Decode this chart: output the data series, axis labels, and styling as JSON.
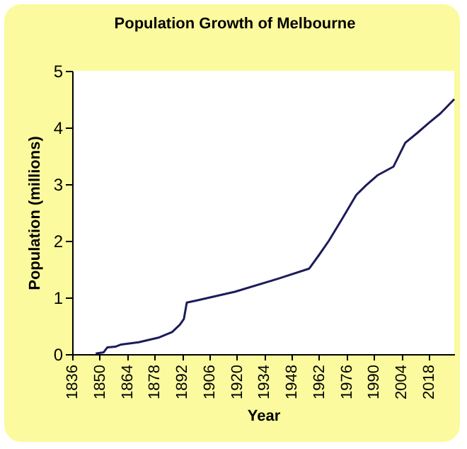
{
  "chart_data": {
    "type": "line",
    "title": "Population Growth of Melbourne",
    "xlabel": "Year",
    "ylabel": "Population (millions)",
    "series": [
      {
        "color": "#1c1c5a",
        "x": [
          1848,
          1852,
          1854,
          1858,
          1861,
          1870,
          1880,
          1887,
          1891,
          1893,
          1894.5,
          1900,
          1919,
          1941,
          1957,
          1962,
          1967,
          1974,
          1981,
          1986,
          1992,
          2000,
          2006,
          2012,
          2018,
          2024,
          2031
        ],
        "values": [
          0.01,
          0.03,
          0.12,
          0.13,
          0.17,
          0.21,
          0.29,
          0.39,
          0.52,
          0.62,
          0.91,
          0.95,
          1.1,
          1.33,
          1.51,
          1.75,
          2.0,
          2.4,
          2.81,
          2.98,
          3.16,
          3.31,
          3.73,
          3.9,
          4.08,
          4.25,
          4.5
        ]
      }
    ],
    "xlim": [
      1836,
      2031
    ],
    "xticks": [
      1836,
      1850,
      1864,
      1878,
      1892,
      1906,
      1920,
      1934,
      1948,
      1962,
      1976,
      1990,
      2004,
      2018
    ],
    "ylim": [
      0,
      5
    ],
    "yticks": [
      0,
      1,
      2,
      3,
      4,
      5
    ],
    "grid": false,
    "legend": false
  }
}
